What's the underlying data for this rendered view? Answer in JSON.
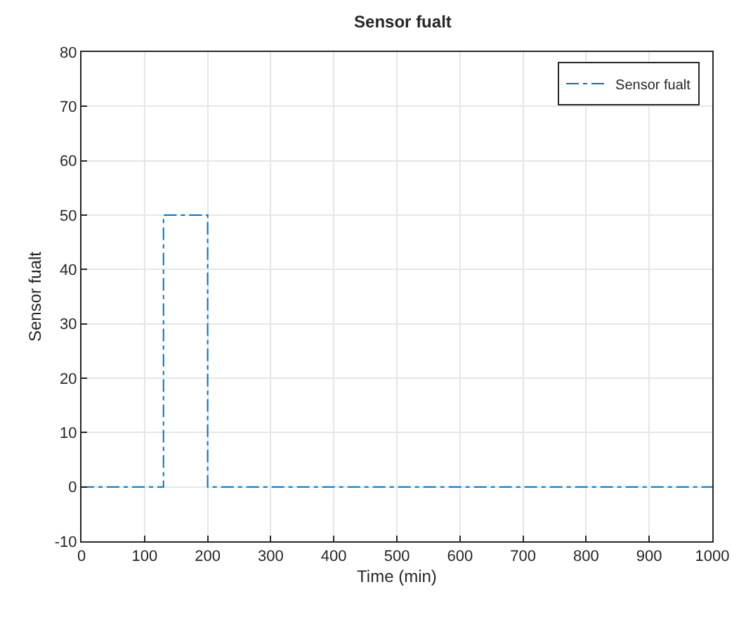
{
  "chart_data": {
    "type": "line",
    "title": "Sensor fualt",
    "xlabel": "Time (min)",
    "ylabel": "Sensor fualt",
    "x": [
      0,
      130,
      130,
      200,
      200,
      1000
    ],
    "series": [
      {
        "name": "Sensor fualt",
        "color": "#0072bd",
        "values": [
          0,
          0,
          50,
          50,
          0,
          0
        ]
      }
    ],
    "xlim": [
      0,
      1000
    ],
    "xticks": [
      0,
      100,
      200,
      300,
      400,
      500,
      600,
      700,
      800,
      900,
      1000
    ],
    "ylim": [
      -10,
      80
    ],
    "yticks": [
      -10,
      0,
      10,
      20,
      30,
      40,
      50,
      60,
      70,
      80
    ],
    "grid": true,
    "legend": "top right",
    "marker": "none",
    "line_style": "dashdot"
  }
}
